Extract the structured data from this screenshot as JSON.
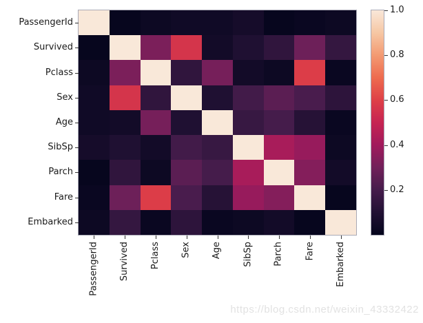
{
  "watermark": "https://blog.csdn.net/weixin_43332422",
  "chart_data": {
    "type": "heatmap",
    "title": "",
    "description": "Correlation heatmap (absolute values) of Titanic dataset features, seaborn rocket colormap",
    "labels": [
      "PassengerId",
      "Survived",
      "Pclass",
      "Sex",
      "Age",
      "SibSp",
      "Parch",
      "Fare",
      "Embarked"
    ],
    "x_ticklabels": [
      "PassengerId",
      "Survived",
      "Pclass",
      "Sex",
      "Age",
      "SibSp",
      "Parch",
      "Fare",
      "Embarked"
    ],
    "y_ticklabels": [
      "PassengerId",
      "Survived",
      "Pclass",
      "Sex",
      "Age",
      "SibSp",
      "Parch",
      "Fare",
      "Embarked"
    ],
    "matrix": [
      [
        1.0,
        0.01,
        0.03,
        0.04,
        0.04,
        0.06,
        0.01,
        0.02,
        0.03
      ],
      [
        0.01,
        1.0,
        0.32,
        0.56,
        0.05,
        0.09,
        0.14,
        0.29,
        0.15
      ],
      [
        0.03,
        0.32,
        1.0,
        0.14,
        0.31,
        0.05,
        0.03,
        0.59,
        0.02
      ],
      [
        0.04,
        0.56,
        0.14,
        1.0,
        0.09,
        0.19,
        0.25,
        0.21,
        0.13
      ],
      [
        0.04,
        0.05,
        0.31,
        0.09,
        1.0,
        0.16,
        0.2,
        0.11,
        0.02
      ],
      [
        0.06,
        0.09,
        0.05,
        0.19,
        0.16,
        1.0,
        0.42,
        0.38,
        0.03
      ],
      [
        0.01,
        0.14,
        0.03,
        0.25,
        0.2,
        0.42,
        1.0,
        0.34,
        0.05
      ],
      [
        0.02,
        0.29,
        0.59,
        0.21,
        0.11,
        0.38,
        0.34,
        1.0,
        0.01
      ],
      [
        0.03,
        0.15,
        0.02,
        0.13,
        0.02,
        0.03,
        0.05,
        0.01,
        1.0
      ]
    ],
    "vmin": 0.0,
    "vmax": 1.0,
    "grid": false,
    "legend_position": "right",
    "colorbar": {
      "tick_labels": [
        "1.0",
        "0.8",
        "0.6",
        "0.4",
        "0.2"
      ],
      "tick_values": [
        1.0,
        0.8,
        0.6,
        0.4,
        0.2
      ]
    },
    "colormap_name": "rocket",
    "colormap_stops": [
      [
        0.0,
        "#04051C"
      ],
      [
        0.1,
        "#221134"
      ],
      [
        0.2,
        "#451C4B"
      ],
      [
        0.3,
        "#71205A"
      ],
      [
        0.4,
        "#A11A5C"
      ],
      [
        0.5,
        "#C62452"
      ],
      [
        0.6,
        "#DE4047"
      ],
      [
        0.7,
        "#EE6B4F"
      ],
      [
        0.8,
        "#F39A72"
      ],
      [
        0.9,
        "#F6C7A4"
      ],
      [
        1.0,
        "#F9E8D9"
      ]
    ]
  }
}
